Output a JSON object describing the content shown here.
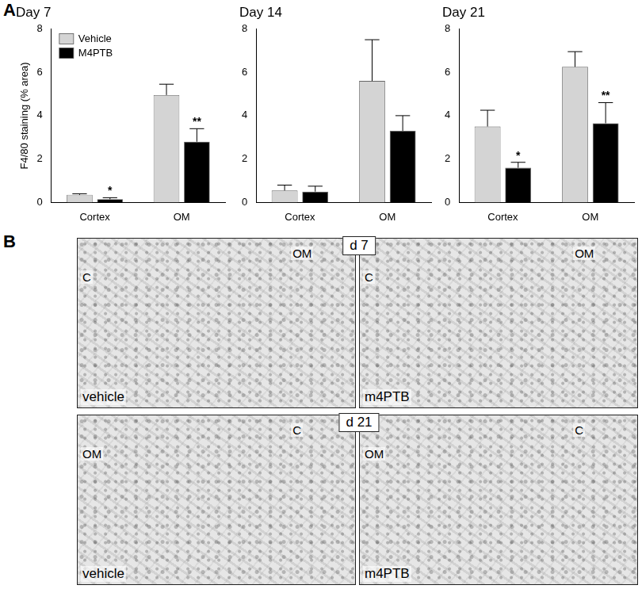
{
  "panel_labels": [
    "A",
    "B"
  ],
  "chart_data": [
    {
      "type": "bar",
      "title": "Day 7",
      "y_label": "F4/80 staining (% area)",
      "categories": [
        "Cortex",
        "OM"
      ],
      "series": [
        {
          "name": "Vehicle",
          "color": "#d4d4d4",
          "values": [
            0.35,
            4.95
          ],
          "errors": [
            0.05,
            0.5
          ],
          "significance": [
            null,
            null
          ]
        },
        {
          "name": "M4PTB",
          "color": "#000000",
          "values": [
            0.15,
            2.8
          ],
          "errors": [
            0.07,
            0.6
          ],
          "significance": [
            "*",
            "**"
          ]
        }
      ],
      "ylim": [
        0,
        8
      ],
      "yticks": [
        0,
        2,
        4,
        6,
        8
      ],
      "grid": false,
      "legend": "upper left"
    },
    {
      "type": "bar",
      "title": "Day 14",
      "categories": [
        "Cortex",
        "OM"
      ],
      "series": [
        {
          "name": "Vehicle",
          "color": "#d4d4d4",
          "values": [
            0.55,
            5.6
          ],
          "errors": [
            0.25,
            1.9
          ],
          "significance": [
            null,
            null
          ]
        },
        {
          "name": "M4PTB",
          "color": "#000000",
          "values": [
            0.5,
            3.3
          ],
          "errors": [
            0.25,
            0.7
          ],
          "significance": [
            null,
            null
          ]
        }
      ],
      "ylim": [
        0,
        8
      ],
      "yticks": [
        0,
        2,
        4,
        6,
        8
      ],
      "grid": false
    },
    {
      "type": "bar",
      "title": "Day 21",
      "categories": [
        "Cortex",
        "OM"
      ],
      "series": [
        {
          "name": "Vehicle",
          "color": "#d4d4d4",
          "values": [
            3.5,
            6.25
          ],
          "errors": [
            0.75,
            0.7
          ],
          "significance": [
            null,
            null
          ]
        },
        {
          "name": "M4PTB",
          "color": "#000000",
          "values": [
            1.6,
            3.65
          ],
          "errors": [
            0.25,
            0.95
          ],
          "significance": [
            "*",
            "**"
          ]
        }
      ],
      "ylim": [
        0,
        8
      ],
      "yticks": [
        0,
        2,
        4,
        6,
        8
      ],
      "grid": false
    }
  ],
  "micrographs": [
    {
      "title": "d 7",
      "images": [
        {
          "caption": "vehicle",
          "regions": [
            "C",
            "OM"
          ]
        },
        {
          "caption": "m4PTB",
          "regions": [
            "C",
            "OM"
          ]
        }
      ]
    },
    {
      "title": "d 21",
      "images": [
        {
          "caption": "vehicle",
          "regions": [
            "OM",
            "C"
          ]
        },
        {
          "caption": "m4PTB",
          "regions": [
            "OM",
            "C"
          ]
        }
      ]
    }
  ]
}
